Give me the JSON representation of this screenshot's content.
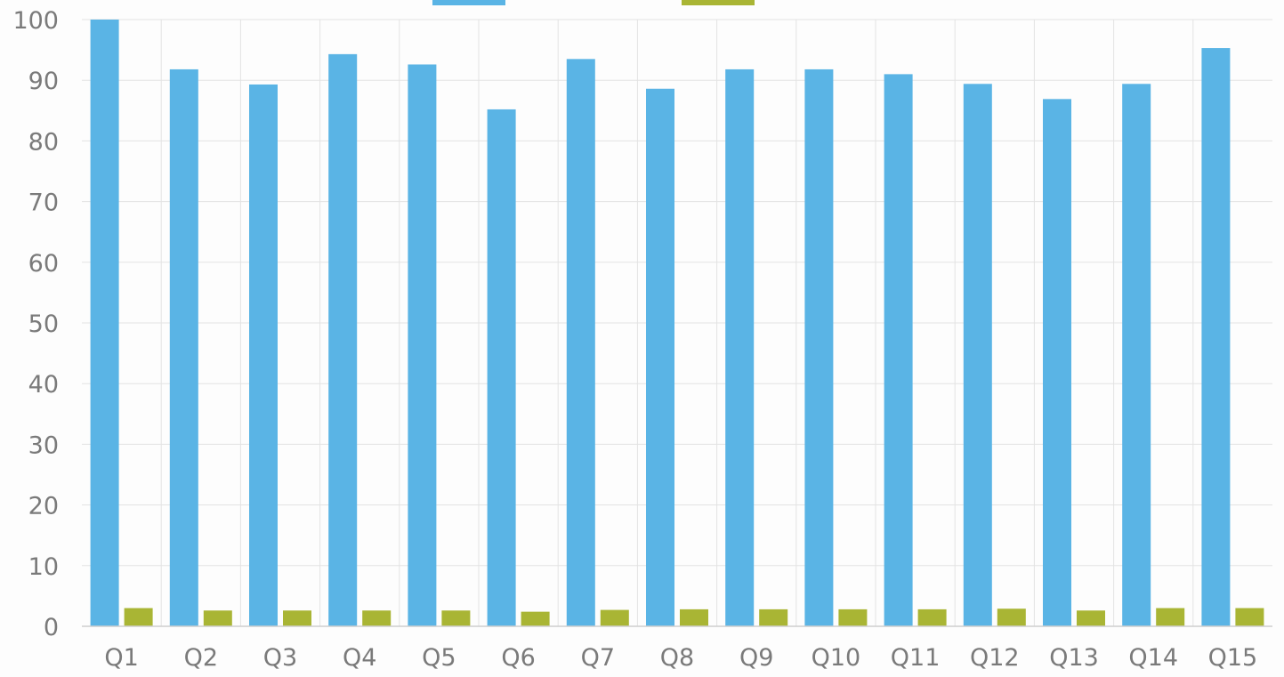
{
  "chart_data": {
    "type": "bar",
    "categories": [
      "Q1",
      "Q2",
      "Q3",
      "Q4",
      "Q5",
      "Q6",
      "Q7",
      "Q8",
      "Q9",
      "Q10",
      "Q11",
      "Q12",
      "Q13",
      "Q14",
      "Q15"
    ],
    "series": [
      {
        "color": "#5ab4e5",
        "values": [
          100,
          91.8,
          89.3,
          94.3,
          92.6,
          85.2,
          93.5,
          88.6,
          91.8,
          91.8,
          91.0,
          89.4,
          86.9,
          89.4,
          95.3
        ]
      },
      {
        "color": "#a9b534",
        "values": [
          3.0,
          2.6,
          2.6,
          2.6,
          2.6,
          2.4,
          2.7,
          2.8,
          2.8,
          2.8,
          2.8,
          2.9,
          2.6,
          3.0,
          3.0
        ]
      }
    ],
    "ylim": [
      0,
      100
    ],
    "yticks": [
      0,
      10,
      20,
      30,
      40,
      50,
      60,
      70,
      80,
      90,
      100
    ],
    "grid": true,
    "legend": "top-center",
    "title": "",
    "xlabel": "",
    "ylabel": ""
  }
}
